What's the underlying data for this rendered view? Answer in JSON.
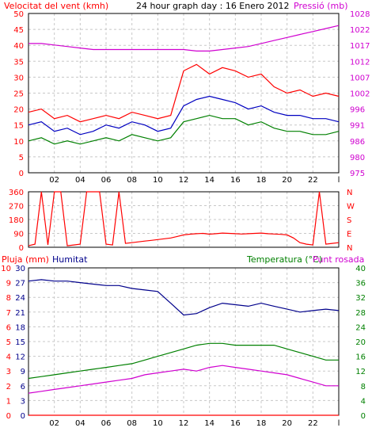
{
  "title": "24 hour graph day : 16 Enero 2012",
  "colors": {
    "grid": "#c8c8c8",
    "axis": "#000000",
    "wind": "#ff0000",
    "wind_avg": "#0000c0",
    "wind_min": "#008000",
    "pressure": "#d000d0",
    "direction": "#ff0000",
    "humidity": "#00008b",
    "temperature": "#008000",
    "dewpoint": "#d000d0",
    "rain": "#ff0000"
  },
  "x_ticks": [
    "02",
    "04",
    "06",
    "08",
    "10",
    "12",
    "14",
    "16",
    "18",
    "20",
    "22",
    "l"
  ],
  "chart_data": [
    {
      "type": "line",
      "name": "wind-pressure",
      "left_label": "Velocitat del vent (kmh)",
      "right_label": "Pressió (mb)",
      "left_ticks": [
        "50",
        "45",
        "40",
        "35",
        "30",
        "25",
        "20",
        "15",
        "10",
        "5",
        "0"
      ],
      "right_ticks": [
        "1028",
        "1022",
        "1017",
        "1012",
        "1007",
        "1002",
        "996",
        "991",
        "986",
        "980",
        "975"
      ],
      "ylim_left": [
        0,
        50
      ],
      "ylim_right": [
        975,
        1028
      ],
      "x": [
        0,
        1,
        2,
        3,
        4,
        5,
        6,
        7,
        8,
        9,
        10,
        11,
        12,
        13,
        14,
        15,
        16,
        17,
        18,
        19,
        20,
        21,
        22,
        23,
        24
      ],
      "series": [
        {
          "values": [
            19,
            20,
            17,
            18,
            16,
            17,
            18,
            17,
            19,
            18,
            17,
            18,
            32,
            34,
            31,
            33,
            32,
            30,
            31,
            27,
            25,
            26,
            24,
            25,
            24
          ]
        },
        {
          "values": [
            15,
            16,
            13,
            14,
            12,
            13,
            15,
            14,
            16,
            15,
            13,
            14,
            21,
            23,
            24,
            23,
            22,
            20,
            21,
            19,
            18,
            18,
            17,
            17,
            16
          ]
        },
        {
          "values": [
            10,
            11,
            9,
            10,
            9,
            10,
            11,
            10,
            12,
            11,
            10,
            11,
            16,
            17,
            18,
            17,
            17,
            15,
            16,
            14,
            13,
            13,
            12,
            12,
            13
          ]
        },
        {
          "values": [
            1018,
            1018,
            1017.5,
            1017,
            1016.5,
            1016,
            1016,
            1016,
            1016,
            1016,
            1016,
            1016,
            1016,
            1015.5,
            1015.5,
            1016,
            1016.5,
            1017,
            1018,
            1019,
            1020,
            1021,
            1022,
            1023,
            1024
          ]
        }
      ]
    },
    {
      "type": "line",
      "name": "wind-direction",
      "left_ticks": [
        "360",
        "270",
        "180",
        "90",
        "0"
      ],
      "right_ticks": [
        "N",
        "W",
        "S",
        "E",
        "N"
      ],
      "ylim": [
        0,
        360
      ],
      "x": [
        0,
        0.5,
        1,
        1.5,
        2,
        2.5,
        3,
        3.5,
        4,
        4.5,
        5,
        5.5,
        6,
        6.5,
        7,
        7.5,
        8,
        8.5,
        9,
        9.5,
        10,
        10.5,
        11,
        11.5,
        12,
        12.5,
        13,
        13.5,
        14,
        14.5,
        15,
        15.5,
        16,
        16.5,
        17,
        17.5,
        18,
        18.5,
        19,
        19.5,
        20,
        20.5,
        21,
        21.5,
        22,
        22.5,
        23,
        23.5,
        24
      ],
      "series": [
        {
          "values": [
            10,
            20,
            360,
            15,
            360,
            360,
            10,
            15,
            20,
            360,
            360,
            360,
            20,
            15,
            360,
            25,
            30,
            35,
            40,
            45,
            50,
            55,
            60,
            70,
            80,
            85,
            88,
            90,
            85,
            88,
            92,
            90,
            88,
            86,
            88,
            90,
            92,
            88,
            86,
            84,
            80,
            60,
            30,
            20,
            15,
            360,
            20,
            25,
            30
          ]
        }
      ]
    },
    {
      "type": "line",
      "name": "humidity-temperature",
      "left_label": "Pluja (mm)",
      "left_label2": "Humitat",
      "right_label": "Temperatura (°C)",
      "right_label2": "Punt rosada",
      "left_ticks_outer": [
        "10",
        "9",
        "8",
        "7",
        "6",
        "5",
        "4",
        "3",
        "2",
        "1",
        "0"
      ],
      "left_ticks_inner": [
        "30",
        "27",
        "24",
        "21",
        "18",
        "15",
        "12",
        "9",
        "6",
        "3",
        "0"
      ],
      "right_ticks": [
        "40",
        "36",
        "32",
        "28",
        "24",
        "20",
        "16",
        "12",
        "8",
        "4",
        "0"
      ],
      "ylim_humidity": [
        0,
        100
      ],
      "ylim_temperature": [
        0,
        40
      ],
      "x": [
        0,
        1,
        2,
        3,
        4,
        5,
        6,
        7,
        8,
        9,
        10,
        11,
        12,
        13,
        14,
        15,
        16,
        17,
        18,
        19,
        20,
        21,
        22,
        23,
        24
      ],
      "series": [
        {
          "values": [
            91,
            92,
            91,
            91,
            90,
            89,
            88,
            88,
            86,
            85,
            84,
            76,
            68,
            69,
            73,
            76,
            75,
            74,
            76,
            74,
            72,
            70,
            71,
            72,
            71
          ]
        },
        {
          "values": [
            10,
            10.5,
            11,
            11.5,
            12,
            12.5,
            13,
            13.5,
            14,
            15,
            16,
            17,
            18,
            19,
            19.5,
            19.5,
            19,
            19,
            19,
            19,
            18,
            17,
            16,
            15,
            15
          ]
        },
        {
          "values": [
            6,
            6.5,
            7,
            7.5,
            8,
            8.5,
            9,
            9.5,
            10,
            11,
            11.5,
            12,
            12.5,
            12,
            13,
            13.5,
            13,
            12.5,
            12,
            11.5,
            11,
            10,
            9,
            8,
            8
          ]
        },
        {
          "values": [
            0,
            0,
            0,
            0,
            0,
            0,
            0,
            0,
            0,
            0,
            0,
            0,
            0,
            0,
            0,
            0,
            0,
            0,
            0,
            0,
            0,
            0,
            0,
            0,
            0
          ]
        }
      ]
    }
  ]
}
